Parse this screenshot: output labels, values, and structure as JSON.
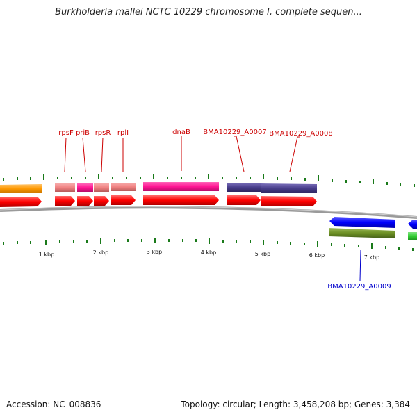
{
  "title": "Burkholderia mallei NCTC 10229 chromosome I, complete sequen...",
  "footer": {
    "accession": "Accession: NC_008836",
    "summary": "Topology: circular; Length: 3,458,208 bp; Genes: 3,384"
  },
  "scale": {
    "unit": "kbp",
    "labels": [
      "1 kbp",
      "2 kbp",
      "3 kbp",
      "4 kbp",
      "5 kbp",
      "6 kbp",
      "7 kbp"
    ]
  },
  "gene_labels": {
    "rpsF": "rpsF",
    "priB": "priB",
    "rpsR": "rpsR",
    "rplI": "rplI",
    "dnaB": "dnaB",
    "a0007": "BMA10229_A0007",
    "a0008": "BMA10229_A0008",
    "a0009": "BMA10229_A0009"
  },
  "colors": {
    "cds_forward": "#ff0000",
    "cds_reverse": "#0000ff",
    "label_forward": "#cc0000",
    "label_reverse": "#0000cc",
    "orange_feature": "#ff9900",
    "salmon_feature": "#f08080",
    "magenta_feature": "#ff1493",
    "purple_feature": "#483d8b",
    "olive_feature": "#6b8e23",
    "green_feature": "#32cd32",
    "backbone": "#888888",
    "ticks": "#1a7a1a"
  }
}
